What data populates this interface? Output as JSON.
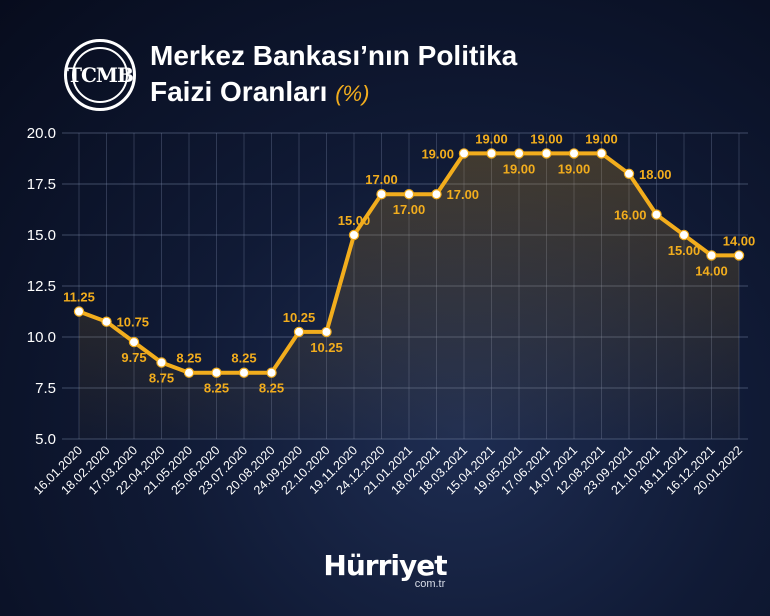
{
  "header": {
    "logo_text": "TCMB",
    "title_line1": "Merkez Bankası’nın Politika",
    "title_line2": "Faizi Oranları",
    "title_unit": "(%)"
  },
  "footer": {
    "brand_name": "Hürriyet",
    "brand_sub": "com.tr"
  },
  "colors": {
    "line": "#f2ad1d",
    "label": "#f2ad1d",
    "grid": "#8090b0",
    "point_fill": "#ffffff"
  },
  "chart_data": {
    "type": "line",
    "title": "Merkez Bankası’nın Politika Faizi Oranları (%)",
    "xlabel": "",
    "ylabel": "",
    "ylim": [
      5.0,
      20.0
    ],
    "yticks": [
      "20.0",
      "17.5",
      "15.0",
      "12.5",
      "10.0",
      "7.5",
      "5.0"
    ],
    "grid": true,
    "categories": [
      "16.01.2020",
      "18.02.2020",
      "17.03.2020",
      "22.04.2020",
      "21.05.2020",
      "25.06.2020",
      "23.07.2020",
      "20.08.2020",
      "24.09.2020",
      "22.10.2020",
      "19.11.2020",
      "24.12.2020",
      "21.01.2021",
      "18.02.2021",
      "18.03.2021",
      "15.04.2021",
      "19.05.2021",
      "17.06.2021",
      "14.07.2021",
      "12.08.2021",
      "23.09.2021",
      "21.10.2021",
      "18.11.2021",
      "16.12.2021",
      "20.01.2022"
    ],
    "series": [
      {
        "values": [
          11.25,
          10.75,
          9.75,
          8.75,
          8.25,
          8.25,
          8.25,
          8.25,
          10.25,
          10.25,
          15.0,
          17.0,
          17.0,
          17.0,
          19.0,
          19.0,
          19.0,
          19.0,
          19.0,
          19.0,
          18.0,
          16.0,
          15.0,
          14.0,
          14.0
        ],
        "data_labels": [
          "11.25",
          "10.75",
          "9.75",
          "8.75",
          "8.25",
          "8.25",
          "8.25",
          "8.25",
          "10.25",
          "10.25",
          "15.00",
          "17.00",
          "17.00",
          "17.00",
          "19.00",
          "19.00",
          "19.00",
          "19.00",
          "19.00",
          "19.00",
          "18.00",
          "16.00",
          "15.00",
          "14.00",
          "14.00"
        ]
      }
    ]
  }
}
